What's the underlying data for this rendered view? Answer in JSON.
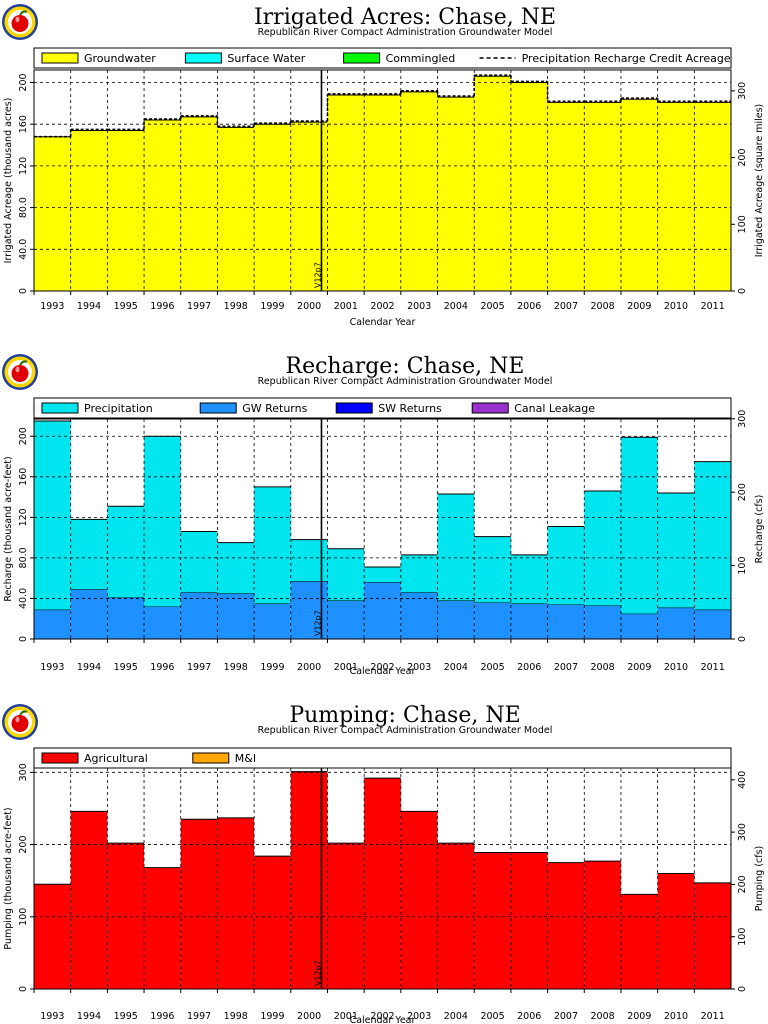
{
  "logo_icon": "apple-logo-icon",
  "colors": {
    "groundwater": "#ffff00",
    "surface_water": "#00ffff",
    "commingled": "#00ff00",
    "precipitation": "#00e5ee",
    "gw_returns": "#1e90ff",
    "sw_returns": "#0000ff",
    "canal_leakage": "#9932cc",
    "agricultural": "#ff0000",
    "mi": "#ffa500"
  },
  "chart_data": [
    {
      "type": "bar",
      "title": "Irrigated Acres: Chase, NE",
      "subtitle": "Republican River Compact Administration Groundwater Model",
      "xlabel": "Calendar Year",
      "ylabel": "Irrigated Acreage (thousand acres)",
      "y2label": "Irrigated Acreage (square miles)",
      "categories": [
        "1993",
        "1994",
        "1995",
        "1996",
        "1997",
        "1998",
        "1999",
        "2000",
        "2001",
        "2002",
        "2003",
        "2004",
        "2005",
        "2006",
        "2007",
        "2008",
        "2009",
        "2010",
        "2011"
      ],
      "ylim": [
        0,
        212
      ],
      "y_ticks": [
        0,
        40,
        80,
        120,
        160,
        200
      ],
      "y_tick_labels": [
        "0",
        "40.0",
        "80.0",
        "120",
        "160",
        "200"
      ],
      "y2_ticks": [
        0,
        100,
        200,
        300
      ],
      "y2_tick_labels": [
        "0",
        "100",
        "200",
        "300"
      ],
      "y2_scale": 1.5625,
      "grid": true,
      "legend": "top",
      "series": [
        {
          "name": "Groundwater",
          "color": "#ffff00",
          "values": [
            148,
            154,
            154,
            164,
            167,
            157,
            160,
            162,
            188,
            188,
            191,
            186,
            206,
            200,
            181,
            181,
            184,
            181,
            181
          ]
        },
        {
          "name": "Surface Water",
          "color": "#00ffff",
          "values": [
            0,
            0,
            0,
            0,
            0,
            0,
            0,
            0,
            0,
            0,
            0,
            0,
            0,
            0,
            0,
            0,
            0,
            0,
            0
          ]
        },
        {
          "name": "Commingled",
          "color": "#00ff00",
          "values": [
            0,
            0,
            0,
            0,
            0,
            0,
            0,
            0,
            0,
            0,
            0,
            0,
            0,
            0,
            0,
            0,
            0,
            0,
            0
          ]
        }
      ],
      "line": {
        "name": "Precipitation Recharge Credit Acreage",
        "values": [
          148,
          155,
          155,
          165,
          168,
          158,
          161,
          163,
          189,
          189,
          192,
          187,
          207,
          201,
          182,
          182,
          185,
          182,
          182
        ]
      },
      "marker": {
        "label": "V12p7",
        "position": 8
      }
    },
    {
      "type": "bar",
      "title": "Recharge: Chase, NE",
      "subtitle": "Republican River Compact Administration Groundwater Model",
      "xlabel": "Calendar Year",
      "ylabel": "Recharge (thousand acre-feet)",
      "y2label": "Recharge (cfs)",
      "categories": [
        "1993",
        "1994",
        "1995",
        "1996",
        "1997",
        "1998",
        "1999",
        "2000",
        "2001",
        "2002",
        "2003",
        "2004",
        "2005",
        "2006",
        "2007",
        "2008",
        "2009",
        "2010",
        "2011"
      ],
      "ylim": [
        0,
        217
      ],
      "y_ticks": [
        0,
        40,
        80,
        120,
        160,
        200
      ],
      "y_tick_labels": [
        "0",
        "40.0",
        "80.0",
        "120",
        "160",
        "200"
      ],
      "y2_ticks": [
        0,
        100,
        200,
        300
      ],
      "y2_tick_labels": [
        "0",
        "100",
        "200",
        "300"
      ],
      "y2_scale": 1.381,
      "grid": true,
      "legend": "top",
      "series": [
        {
          "name": "GW Returns",
          "color": "#1e90ff",
          "values": [
            29,
            49,
            41,
            32,
            46,
            45,
            35,
            57,
            38,
            56,
            46,
            38,
            36,
            35,
            34,
            33,
            25,
            31,
            29
          ]
        },
        {
          "name": "Precipitation",
          "color": "#00e5ee",
          "values": [
            186,
            69,
            90,
            168,
            60,
            50,
            115,
            41,
            51,
            15,
            37,
            105,
            65,
            48,
            77,
            113,
            174,
            113,
            146
          ]
        },
        {
          "name": "SW Returns",
          "color": "#0000ff",
          "values": [
            0,
            0,
            0,
            0,
            0,
            0,
            0,
            0,
            0,
            0,
            0,
            0,
            0,
            0,
            0,
            0,
            0,
            0,
            0
          ]
        },
        {
          "name": "Canal Leakage",
          "color": "#9932cc",
          "values": [
            0,
            0,
            0,
            0,
            0,
            0,
            0,
            0,
            0,
            0,
            0,
            0,
            0,
            0,
            0,
            0,
            0,
            0,
            0
          ]
        }
      ],
      "legend_order": [
        "Precipitation",
        "GW Returns",
        "SW Returns",
        "Canal Leakage"
      ],
      "marker": {
        "label": "V12p7",
        "position": 8
      }
    },
    {
      "type": "bar",
      "title": "Pumping: Chase, NE",
      "subtitle": "Republican River Compact Administration Groundwater Model",
      "xlabel": "Calendar Year",
      "ylabel": "Pumping (thousand acre-feet)",
      "y2label": "Pumping (cfs)",
      "categories": [
        "1993",
        "1994",
        "1995",
        "1996",
        "1997",
        "1998",
        "1999",
        "2000",
        "2001",
        "2002",
        "2003",
        "2004",
        "2005",
        "2006",
        "2007",
        "2008",
        "2009",
        "2010",
        "2011"
      ],
      "ylim": [
        0,
        306
      ],
      "y_ticks": [
        0,
        100,
        200,
        300
      ],
      "y_tick_labels": [
        "0",
        "100",
        "200",
        "300"
      ],
      "y2_ticks": [
        0,
        100,
        200,
        300,
        400
      ],
      "y2_tick_labels": [
        "0",
        "100",
        "200",
        "300",
        "400"
      ],
      "y2_scale": 1.381,
      "grid": true,
      "legend": "top",
      "series": [
        {
          "name": "Agricultural",
          "color": "#ff0000",
          "values": [
            145,
            246,
            202,
            168,
            235,
            237,
            184,
            301,
            202,
            292,
            246,
            202,
            189,
            189,
            175,
            177,
            131,
            160,
            147
          ]
        },
        {
          "name": "M&I",
          "color": "#ffa500",
          "values": [
            0,
            0,
            0,
            0,
            0,
            0,
            0,
            0,
            0,
            0,
            0,
            0,
            0,
            0,
            0,
            0,
            0,
            0,
            0
          ]
        }
      ],
      "marker": {
        "label": "V12p7",
        "position": 8
      }
    }
  ]
}
